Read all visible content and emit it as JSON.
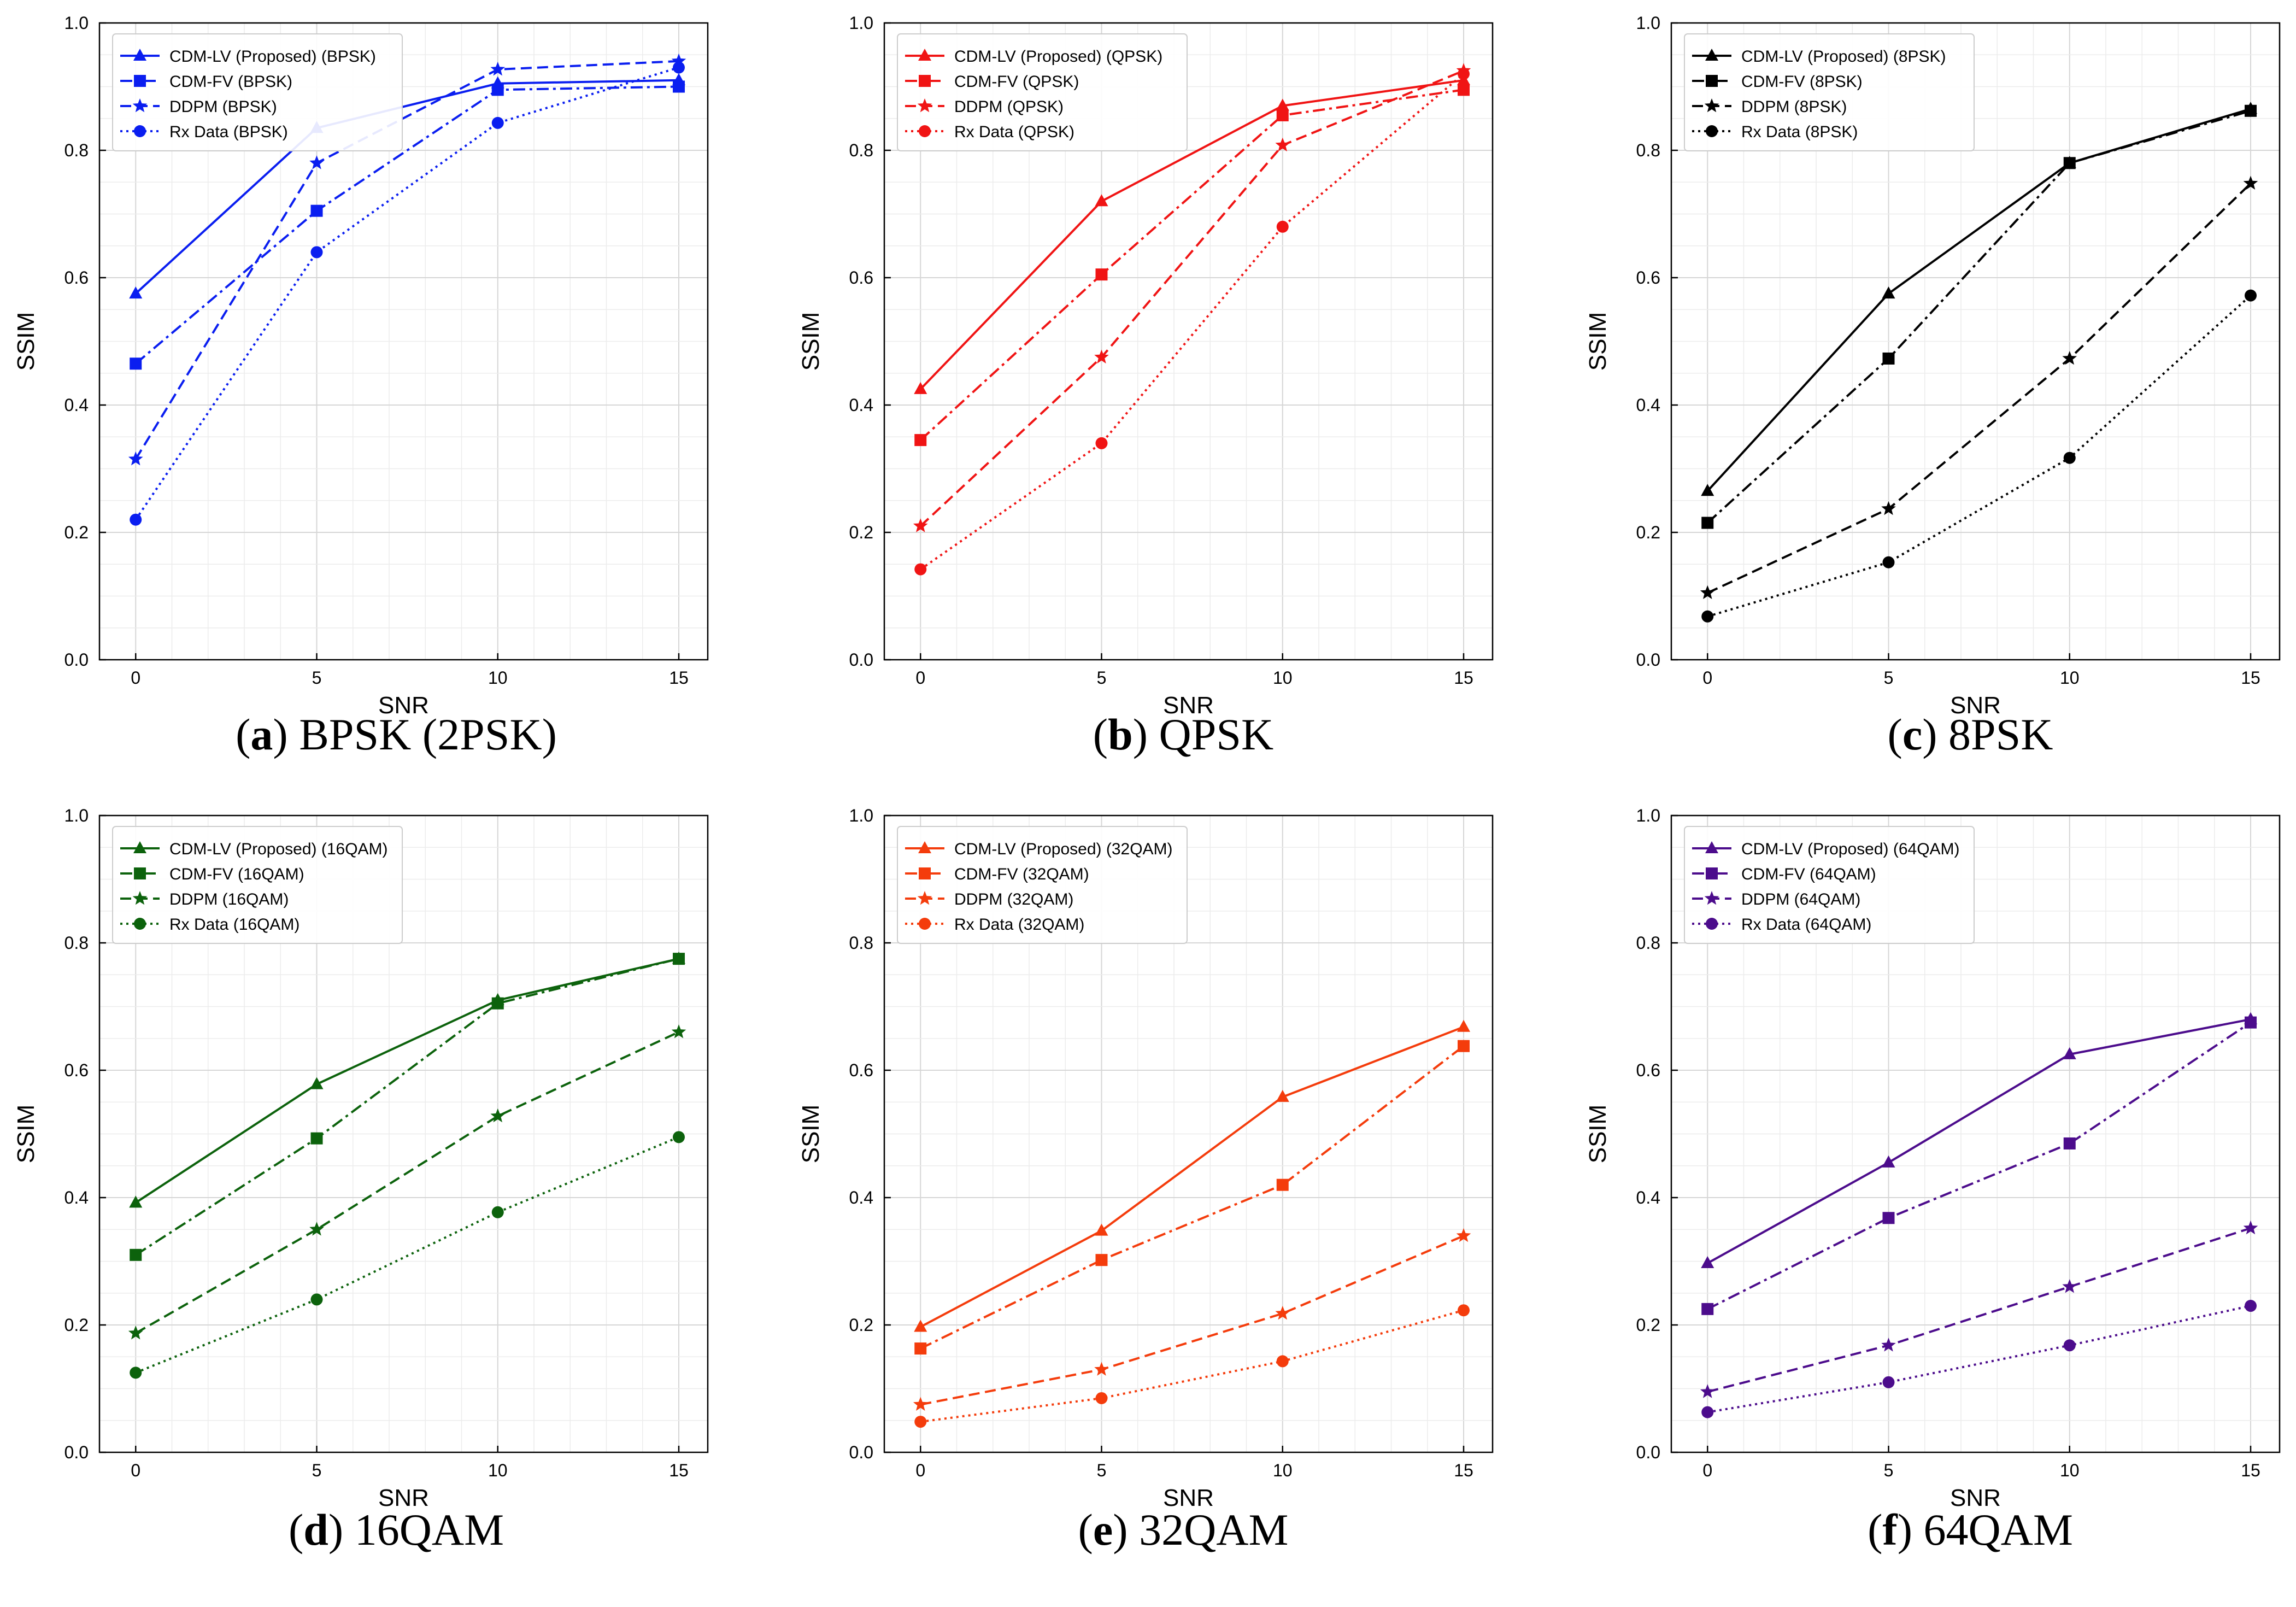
{
  "figure": {
    "panels": [
      {
        "id": "a",
        "caption_label": "a",
        "caption_text": "BPSK (2PSK)",
        "color": "#0a1ef0",
        "chart_data": {
          "type": "line",
          "title": "",
          "xlabel": "SNR",
          "ylabel": "SSIM",
          "x": [
            0,
            5,
            10,
            15
          ],
          "xlim": [
            -1,
            15.8
          ],
          "ylim": [
            0,
            1.0
          ],
          "xticks": [
            "0",
            "5",
            "10",
            "15"
          ],
          "yticks": [
            "0.0",
            "0.2",
            "0.4",
            "0.6",
            "0.8",
            "1.0"
          ],
          "grid": true,
          "legend_position": "top-left",
          "series": [
            {
              "name": "CDM-LV (Proposed) (BPSK)",
              "style": "solid",
              "marker": "triangle",
              "values": [
                0.575,
                0.835,
                0.905,
                0.91
              ]
            },
            {
              "name": "CDM-FV (BPSK)",
              "style": "dashdot",
              "marker": "square",
              "values": [
                0.465,
                0.705,
                0.895,
                0.9
              ]
            },
            {
              "name": "DDPM (BPSK)",
              "style": "dashed",
              "marker": "star",
              "values": [
                0.315,
                0.78,
                0.927,
                0.94
              ]
            },
            {
              "name": "Rx Data (BPSK)",
              "style": "dotted",
              "marker": "circle",
              "values": [
                0.22,
                0.64,
                0.843,
                0.93
              ]
            }
          ]
        }
      },
      {
        "id": "b",
        "caption_label": "b",
        "caption_text": "QPSK",
        "color": "#f01414",
        "chart_data": {
          "type": "line",
          "title": "",
          "xlabel": "SNR",
          "ylabel": "SSIM",
          "x": [
            0,
            5,
            10,
            15
          ],
          "xlim": [
            -1,
            15.8
          ],
          "ylim": [
            0,
            1.0
          ],
          "xticks": [
            "0",
            "5",
            "10",
            "15"
          ],
          "yticks": [
            "0.0",
            "0.2",
            "0.4",
            "0.6",
            "0.8",
            "1.0"
          ],
          "grid": true,
          "legend_position": "top-left",
          "series": [
            {
              "name": "CDM-LV (Proposed) (QPSK)",
              "style": "solid",
              "marker": "triangle",
              "values": [
                0.425,
                0.72,
                0.87,
                0.91
              ]
            },
            {
              "name": "CDM-FV (QPSK)",
              "style": "dashdot",
              "marker": "square",
              "values": [
                0.345,
                0.605,
                0.855,
                0.895
              ]
            },
            {
              "name": "DDPM (QPSK)",
              "style": "dashed",
              "marker": "star",
              "values": [
                0.21,
                0.475,
                0.808,
                0.925
              ]
            },
            {
              "name": "Rx Data (QPSK)",
              "style": "dotted",
              "marker": "circle",
              "values": [
                0.142,
                0.34,
                0.68,
                0.92
              ]
            }
          ]
        }
      },
      {
        "id": "c",
        "caption_label": "c",
        "caption_text": "8PSK",
        "color": "#000000",
        "chart_data": {
          "type": "line",
          "title": "",
          "xlabel": "SNR",
          "ylabel": "SSIM",
          "x": [
            0,
            5,
            10,
            15
          ],
          "xlim": [
            -1,
            15.8
          ],
          "ylim": [
            0,
            1.0
          ],
          "xticks": [
            "0",
            "5",
            "10",
            "15"
          ],
          "yticks": [
            "0.0",
            "0.2",
            "0.4",
            "0.6",
            "0.8",
            "1.0"
          ],
          "grid": true,
          "legend_position": "top-left",
          "series": [
            {
              "name": "CDM-LV (Proposed) (8PSK)",
              "style": "solid",
              "marker": "triangle",
              "values": [
                0.265,
                0.575,
                0.78,
                0.865
              ]
            },
            {
              "name": "CDM-FV (8PSK)",
              "style": "dashdot",
              "marker": "square",
              "values": [
                0.215,
                0.473,
                0.78,
                0.862
              ]
            },
            {
              "name": "DDPM (8PSK)",
              "style": "dashed",
              "marker": "star",
              "values": [
                0.105,
                0.237,
                0.473,
                0.748
              ]
            },
            {
              "name": "Rx Data (8PSK)",
              "style": "dotted",
              "marker": "circle",
              "values": [
                0.068,
                0.153,
                0.317,
                0.572
              ]
            }
          ]
        }
      },
      {
        "id": "d",
        "caption_label": "d",
        "caption_text": "16QAM",
        "color": "#0c620c",
        "chart_data": {
          "type": "line",
          "title": "",
          "xlabel": "SNR",
          "ylabel": "SSIM",
          "x": [
            0,
            5,
            10,
            15
          ],
          "xlim": [
            -1,
            15.8
          ],
          "ylim": [
            0,
            1.0
          ],
          "xticks": [
            "0",
            "5",
            "10",
            "15"
          ],
          "yticks": [
            "0.0",
            "0.2",
            "0.4",
            "0.6",
            "0.8",
            "1.0"
          ],
          "grid": true,
          "legend_position": "top-left",
          "series": [
            {
              "name": "CDM-LV (Proposed) (16QAM)",
              "style": "solid",
              "marker": "triangle",
              "values": [
                0.392,
                0.578,
                0.71,
                0.775
              ]
            },
            {
              "name": "CDM-FV (16QAM)",
              "style": "dashdot",
              "marker": "square",
              "values": [
                0.31,
                0.493,
                0.705,
                0.775
              ]
            },
            {
              "name": "DDPM (16QAM)",
              "style": "dashed",
              "marker": "star",
              "values": [
                0.187,
                0.35,
                0.528,
                0.66
              ]
            },
            {
              "name": "Rx Data (16QAM)",
              "style": "dotted",
              "marker": "circle",
              "values": [
                0.125,
                0.24,
                0.377,
                0.495
              ]
            }
          ]
        }
      },
      {
        "id": "e",
        "caption_label": "e",
        "caption_text": "32QAM",
        "color": "#f43c0c",
        "chart_data": {
          "type": "line",
          "title": "",
          "xlabel": "SNR",
          "ylabel": "SSIM",
          "x": [
            0,
            5,
            10,
            15
          ],
          "xlim": [
            -1,
            15.8
          ],
          "ylim": [
            0,
            1.0
          ],
          "xticks": [
            "0",
            "5",
            "10",
            "15"
          ],
          "yticks": [
            "0.0",
            "0.2",
            "0.4",
            "0.6",
            "0.8",
            "1.0"
          ],
          "grid": true,
          "legend_position": "top-left",
          "series": [
            {
              "name": "CDM-LV (Proposed) (32QAM)",
              "style": "solid",
              "marker": "triangle",
              "values": [
                0.197,
                0.348,
                0.558,
                0.668
              ]
            },
            {
              "name": "CDM-FV (32QAM)",
              "style": "dashdot",
              "marker": "square",
              "values": [
                0.163,
                0.302,
                0.42,
                0.638
              ]
            },
            {
              "name": "DDPM (32QAM)",
              "style": "dashed",
              "marker": "star",
              "values": [
                0.075,
                0.13,
                0.218,
                0.34
              ]
            },
            {
              "name": "Rx Data (32QAM)",
              "style": "dotted",
              "marker": "circle",
              "values": [
                0.048,
                0.085,
                0.143,
                0.223
              ]
            }
          ]
        }
      },
      {
        "id": "f",
        "caption_label": "f",
        "caption_text": "64QAM",
        "color": "#4c0c8c",
        "chart_data": {
          "type": "line",
          "title": "",
          "xlabel": "SNR",
          "ylabel": "SSIM",
          "x": [
            0,
            5,
            10,
            15
          ],
          "xlim": [
            -1,
            15.8
          ],
          "ylim": [
            0,
            1.0
          ],
          "xticks": [
            "0",
            "5",
            "10",
            "15"
          ],
          "yticks": [
            "0.0",
            "0.2",
            "0.4",
            "0.6",
            "0.8",
            "1.0"
          ],
          "grid": true,
          "legend_position": "top-left",
          "series": [
            {
              "name": "CDM-LV (Proposed) (64QAM)",
              "style": "solid",
              "marker": "triangle",
              "values": [
                0.297,
                0.455,
                0.625,
                0.68
              ]
            },
            {
              "name": "CDM-FV (64QAM)",
              "style": "dashdot",
              "marker": "square",
              "values": [
                0.225,
                0.368,
                0.485,
                0.675
              ]
            },
            {
              "name": "DDPM (64QAM)",
              "style": "dashed",
              "marker": "star",
              "values": [
                0.095,
                0.168,
                0.26,
                0.352
              ]
            },
            {
              "name": "Rx Data (64QAM)",
              "style": "dotted",
              "marker": "circle",
              "values": [
                0.063,
                0.11,
                0.168,
                0.23
              ]
            }
          ]
        }
      }
    ]
  }
}
